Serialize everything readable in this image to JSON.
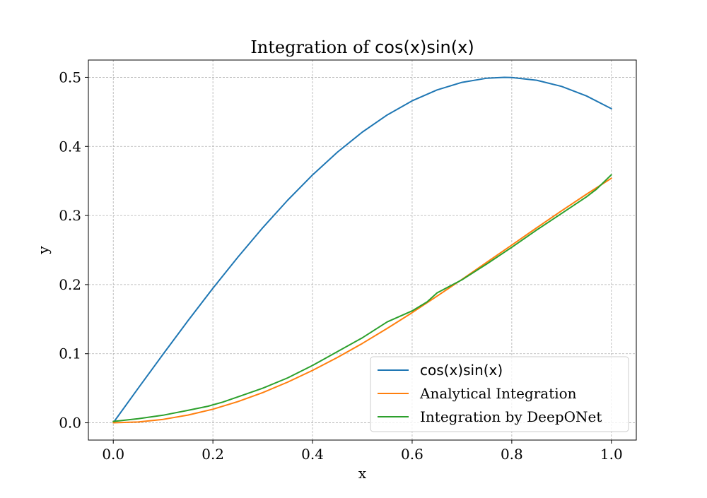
{
  "chart_data": {
    "type": "line",
    "title": {
      "prefix": "Integration of ",
      "math": "cos(x)sin(x)"
    },
    "xlabel": "x",
    "ylabel": "y",
    "xlim": [
      -0.05,
      1.05
    ],
    "ylim": [
      -0.025,
      0.525
    ],
    "xticks": [
      0.0,
      0.2,
      0.4,
      0.6,
      0.8,
      1.0
    ],
    "xtick_labels": [
      "0.0",
      "0.2",
      "0.4",
      "0.6",
      "0.8",
      "1.0"
    ],
    "yticks": [
      0.0,
      0.1,
      0.2,
      0.3,
      0.4,
      0.5
    ],
    "ytick_labels": [
      "0.0",
      "0.1",
      "0.2",
      "0.3",
      "0.4",
      "0.5"
    ],
    "grid": true,
    "legend_position": "lower-right",
    "series": [
      {
        "name": "cos(x)sin(x)",
        "color": "#1f77b4",
        "x": [
          0.0,
          0.05,
          0.1,
          0.15,
          0.2,
          0.25,
          0.3,
          0.35,
          0.4,
          0.45,
          0.5,
          0.55,
          0.6,
          0.65,
          0.7,
          0.75,
          0.785,
          0.8,
          0.85,
          0.9,
          0.95,
          1.0
        ],
        "y": [
          0.0,
          0.05,
          0.0993,
          0.1478,
          0.1947,
          0.2397,
          0.2823,
          0.3221,
          0.3587,
          0.3917,
          0.4207,
          0.4456,
          0.466,
          0.4818,
          0.4927,
          0.4987,
          0.5,
          0.4998,
          0.4958,
          0.4869,
          0.4731,
          0.4546
        ]
      },
      {
        "name": "Analytical Integration",
        "color": "#ff7f0e",
        "x": [
          0.0,
          0.05,
          0.1,
          0.15,
          0.2,
          0.25,
          0.3,
          0.35,
          0.4,
          0.45,
          0.5,
          0.55,
          0.6,
          0.65,
          0.7,
          0.75,
          0.8,
          0.85,
          0.9,
          0.95,
          1.0
        ],
        "y": [
          0.0,
          0.0012,
          0.005,
          0.0112,
          0.0197,
          0.0306,
          0.0437,
          0.0588,
          0.0758,
          0.0946,
          0.1149,
          0.1366,
          0.1594,
          0.1833,
          0.2075,
          0.2324,
          0.2573,
          0.2822,
          0.3068,
          0.3308,
          0.354
        ]
      },
      {
        "name": "Integration by DeepONet",
        "color": "#2ca02c",
        "x": [
          0.0,
          0.05,
          0.1,
          0.15,
          0.19,
          0.22,
          0.26,
          0.3,
          0.35,
          0.4,
          0.45,
          0.5,
          0.55,
          0.6,
          0.63,
          0.65,
          0.7,
          0.75,
          0.8,
          0.85,
          0.9,
          0.95,
          0.97,
          1.0
        ],
        "y": [
          0.002,
          0.006,
          0.011,
          0.018,
          0.024,
          0.03,
          0.04,
          0.05,
          0.065,
          0.083,
          0.103,
          0.123,
          0.146,
          0.162,
          0.175,
          0.188,
          0.207,
          0.23,
          0.254,
          0.279,
          0.303,
          0.327,
          0.338,
          0.359
        ]
      }
    ]
  }
}
